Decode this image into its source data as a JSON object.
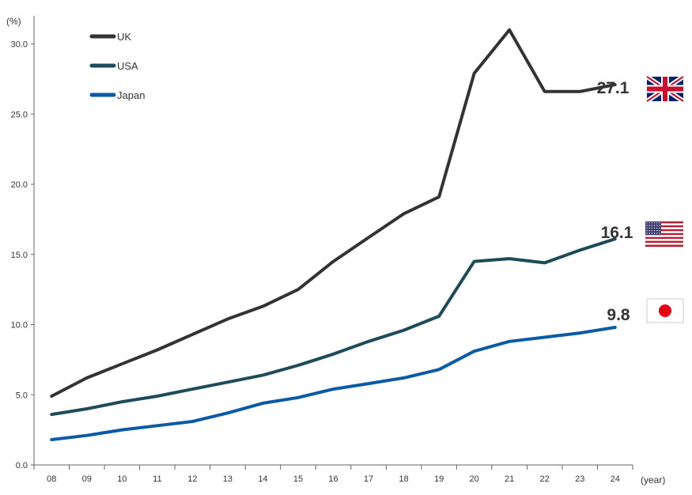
{
  "chart_data": {
    "type": "line",
    "y_unit": "(%)",
    "x_unit": "(year)",
    "categories": [
      "08",
      "09",
      "10",
      "11",
      "12",
      "13",
      "14",
      "15",
      "16",
      "17",
      "18",
      "19",
      "20",
      "21",
      "22",
      "23",
      "24"
    ],
    "y_ticks": [
      "0.0",
      "5.0",
      "10.0",
      "15.0",
      "20.0",
      "25.0",
      "30.0"
    ],
    "ylim": [
      0,
      32
    ],
    "grid": false,
    "legend_position": "top-left",
    "series": [
      {
        "name": "UK",
        "color": "#333333",
        "values": [
          4.9,
          6.2,
          7.2,
          8.2,
          9.3,
          10.4,
          11.3,
          12.5,
          14.5,
          16.2,
          17.9,
          19.1,
          27.9,
          31.0,
          26.6,
          26.6,
          27.1
        ],
        "end_label": "27.1",
        "flag_icon": "uk-flag-icon"
      },
      {
        "name": "USA",
        "color": "#1d4b5a",
        "values": [
          3.6,
          4.0,
          4.5,
          4.9,
          5.4,
          5.9,
          6.4,
          7.1,
          7.9,
          8.8,
          9.6,
          10.6,
          14.5,
          14.7,
          14.4,
          15.3,
          16.1
        ],
        "end_label": "16.1",
        "flag_icon": "usa-flag-icon"
      },
      {
        "name": "Japan",
        "color": "#0b5aa5",
        "values": [
          1.8,
          2.1,
          2.5,
          2.8,
          3.1,
          3.7,
          4.4,
          4.8,
          5.4,
          5.8,
          6.2,
          6.8,
          8.1,
          8.8,
          9.1,
          9.4,
          9.8
        ],
        "end_label": "9.8",
        "flag_icon": "japan-flag-icon"
      }
    ]
  }
}
